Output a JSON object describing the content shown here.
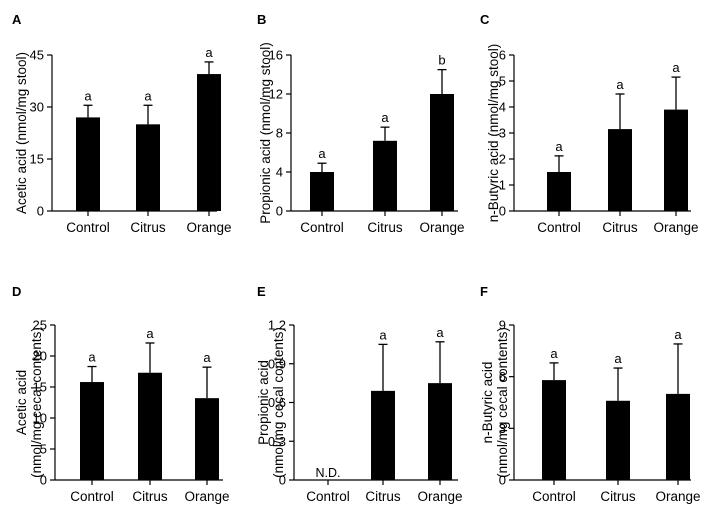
{
  "chart_data": [
    {
      "type": "bar",
      "panel": "A",
      "categories": [
        "Control",
        "Citrus",
        "Orange"
      ],
      "values": [
        27,
        25,
        39.5
      ],
      "errors": [
        3.5,
        5.5,
        3.5
      ],
      "significance": [
        "a",
        "a",
        "a"
      ],
      "ylabel_lines": [
        "Acetic acid (nmol/mg stool)"
      ],
      "ylim": [
        0,
        45
      ],
      "yticks": [
        0,
        15,
        30,
        45
      ],
      "ytick_labels": [
        "0",
        "15",
        "30",
        "45"
      ],
      "xlabel": "",
      "title": ""
    },
    {
      "type": "bar",
      "panel": "B",
      "categories": [
        "Control",
        "Citrus",
        "Orange"
      ],
      "values": [
        4,
        7.2,
        12
      ],
      "errors": [
        0.9,
        1.4,
        2.5
      ],
      "significance": [
        "a",
        "a",
        "b"
      ],
      "ylabel_lines": [
        "Propionic acid (nmol/mg stool)"
      ],
      "ylim": [
        0,
        16
      ],
      "yticks": [
        0,
        4,
        8,
        12,
        16
      ],
      "ytick_labels": [
        "0",
        "4",
        "8",
        "12",
        "16"
      ],
      "xlabel": "",
      "title": ""
    },
    {
      "type": "bar",
      "panel": "C",
      "categories": [
        "Control",
        "Citrus",
        "Orange"
      ],
      "values": [
        1.5,
        3.15,
        3.9
      ],
      "errors": [
        0.62,
        1.35,
        1.25
      ],
      "significance": [
        "a",
        "a",
        "a"
      ],
      "ylabel_lines": [
        "n-Butyric acid (nmol/mg stool)"
      ],
      "ylim": [
        0,
        6
      ],
      "yticks": [
        0,
        1,
        2,
        3,
        4,
        5,
        6
      ],
      "ytick_labels": [
        "0",
        "1",
        "2",
        "3",
        "4",
        "5",
        "6"
      ],
      "xlabel": "",
      "title": ""
    },
    {
      "type": "bar",
      "panel": "D",
      "categories": [
        "Control",
        "Citrus",
        "Orange"
      ],
      "values": [
        15.8,
        17.3,
        13.2
      ],
      "errors": [
        2.5,
        4.8,
        5
      ],
      "significance": [
        "a",
        "a",
        "a"
      ],
      "ylabel_lines": [
        "Acetic acid",
        "(nmol/mg cecal contents)"
      ],
      "ylim": [
        0,
        25
      ],
      "yticks": [
        0,
        5,
        10,
        15,
        20,
        25
      ],
      "ytick_labels": [
        "0",
        "5",
        "10",
        "15",
        "20",
        "25"
      ],
      "xlabel": "",
      "title": ""
    },
    {
      "type": "bar",
      "panel": "E",
      "categories": [
        "Control",
        "Citrus",
        "Orange"
      ],
      "values": [
        null,
        0.69,
        0.75
      ],
      "errors": [
        null,
        0.36,
        0.32
      ],
      "significance": [
        "",
        "a",
        "a"
      ],
      "annotation": "N.D.",
      "ylabel_lines": [
        "Propionic acid",
        "(nmol/mg cecal contents)"
      ],
      "ylim": [
        0,
        1.2
      ],
      "yticks": [
        0,
        0.3,
        0.6,
        0.9,
        1.2
      ],
      "ytick_labels": [
        "0",
        "0.3",
        "0.6",
        "0.9",
        "1.2"
      ],
      "xlabel": "",
      "title": ""
    },
    {
      "type": "bar",
      "panel": "F",
      "categories": [
        "Control",
        "Citrus",
        "Orange"
      ],
      "values": [
        5.8,
        4.6,
        5
      ],
      "errors": [
        1,
        1.9,
        2.9
      ],
      "significance": [
        "a",
        "a",
        "a"
      ],
      "ylabel_lines": [
        "n-Butyric acid",
        "(nmol/mg cecal contents)"
      ],
      "ylim": [
        0,
        9
      ],
      "yticks": [
        0,
        3,
        6,
        9
      ],
      "ytick_labels": [
        "0",
        "3",
        "6",
        "9"
      ],
      "xlabel": "",
      "title": ""
    }
  ],
  "colors": {
    "bar": "#000000",
    "axis": "#000000",
    "background": "#ffffff"
  }
}
